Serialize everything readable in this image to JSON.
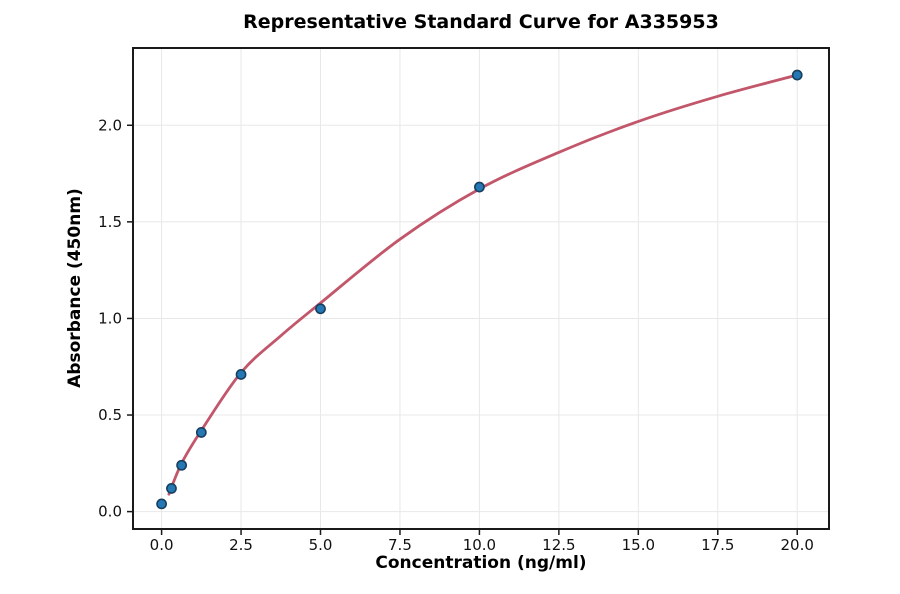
{
  "chart_data": {
    "type": "scatter",
    "title": "Representative Standard Curve for A335953",
    "xlabel": "Concentration (ng/ml)",
    "ylabel": "Absorbance (450nm)",
    "xlim": [
      -0.9,
      21.0
    ],
    "ylim": [
      -0.09,
      2.4
    ],
    "grid": true,
    "legend": "none",
    "x_ticks": [
      0,
      2.5,
      5,
      7.5,
      10,
      12.5,
      15,
      17.5,
      20
    ],
    "x_tick_labels": [
      "0.0",
      "2.5",
      "5.0",
      "7.5",
      "10.0",
      "12.5",
      "15.0",
      "17.5",
      "20.0"
    ],
    "y_ticks": [
      0,
      0.5,
      1.0,
      1.5,
      2.0
    ],
    "y_tick_labels": [
      "0.0",
      "0.5",
      "1.0",
      "1.5",
      "2.0"
    ],
    "points": [
      {
        "x": 0.0,
        "y": 0.04
      },
      {
        "x": 0.31,
        "y": 0.12
      },
      {
        "x": 0.63,
        "y": 0.24
      },
      {
        "x": 1.25,
        "y": 0.41
      },
      {
        "x": 2.5,
        "y": 0.71
      },
      {
        "x": 5.0,
        "y": 1.05
      },
      {
        "x": 10.0,
        "y": 1.68
      },
      {
        "x": 20.0,
        "y": 2.26
      }
    ],
    "fit_curve": [
      {
        "x": 0.23,
        "y": 0.09
      },
      {
        "x": 0.63,
        "y": 0.25
      },
      {
        "x": 1.25,
        "y": 0.42
      },
      {
        "x": 2.5,
        "y": 0.72
      },
      {
        "x": 3.75,
        "y": 0.91
      },
      {
        "x": 5.0,
        "y": 1.08
      },
      {
        "x": 7.5,
        "y": 1.41
      },
      {
        "x": 10.0,
        "y": 1.67
      },
      {
        "x": 12.5,
        "y": 1.86
      },
      {
        "x": 15.0,
        "y": 2.02
      },
      {
        "x": 17.5,
        "y": 2.15
      },
      {
        "x": 20.0,
        "y": 2.26
      }
    ],
    "colors": {
      "marker_fill": "#2578b4",
      "marker_edge": "#17405f",
      "fit_line": "#c2566a",
      "grid": "#e8e8e8",
      "spine": "#1a1a1a",
      "text": "#111111",
      "background": "#ffffff"
    }
  }
}
